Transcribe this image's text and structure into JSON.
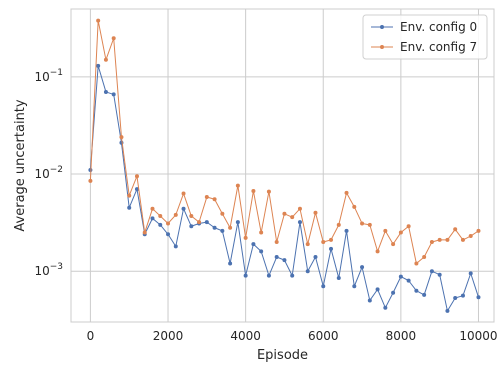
{
  "chart_data": {
    "type": "line",
    "title": "",
    "xlabel": "Episode",
    "ylabel": "Average uncertainty",
    "xlim": [
      -500,
      10400
    ],
    "ylim": [
      0.0003,
      0.5
    ],
    "yscale": "log",
    "grid": true,
    "legend_position": "top-right",
    "x_ticks": [
      0,
      2000,
      4000,
      6000,
      8000,
      10000
    ],
    "x_tick_labels": [
      "0",
      "2000",
      "4000",
      "6000",
      "8000",
      "10000"
    ],
    "y_ticks": [
      0.001,
      0.01,
      0.1
    ],
    "y_tick_labels": [
      {
        "base": "10",
        "exp": "−3"
      },
      {
        "base": "10",
        "exp": "−2"
      },
      {
        "base": "10",
        "exp": "−1"
      }
    ],
    "x": [
      0,
      200,
      400,
      600,
      800,
      1000,
      1200,
      1400,
      1600,
      1800,
      2000,
      2200,
      2400,
      2600,
      2800,
      3000,
      3200,
      3400,
      3600,
      3800,
      4000,
      4200,
      4400,
      4600,
      4800,
      5000,
      5200,
      5400,
      5600,
      5800,
      6000,
      6200,
      6400,
      6600,
      6800,
      7000,
      7200,
      7400,
      7600,
      7800,
      8000,
      8200,
      8400,
      8600,
      8800,
      9000,
      9200,
      9400,
      9600,
      9800,
      10000
    ],
    "series": [
      {
        "name": "Env. config 0",
        "color": "#4c72b0",
        "values": [
          0.011,
          0.13,
          0.07,
          0.066,
          0.021,
          0.0045,
          0.007,
          0.0024,
          0.0035,
          0.003,
          0.0024,
          0.0018,
          0.0044,
          0.0029,
          0.0031,
          0.0032,
          0.0028,
          0.0026,
          0.0012,
          0.0032,
          0.0009,
          0.0019,
          0.0016,
          0.0009,
          0.0014,
          0.0013,
          0.0009,
          0.0032,
          0.001,
          0.0014,
          0.0007,
          0.0017,
          0.00085,
          0.0026,
          0.0007,
          0.0011,
          0.0005,
          0.00065,
          0.00042,
          0.0006,
          0.00088,
          0.0008,
          0.00063,
          0.00057,
          0.001,
          0.00092,
          0.00039,
          0.00053,
          0.00056,
          0.00095,
          0.00054
        ]
      },
      {
        "name": "Env. config 7",
        "color": "#dd8452",
        "values": [
          0.0085,
          0.38,
          0.15,
          0.25,
          0.024,
          0.006,
          0.0095,
          0.0025,
          0.0044,
          0.0037,
          0.0031,
          0.0038,
          0.0063,
          0.0037,
          0.0032,
          0.0058,
          0.0055,
          0.0039,
          0.0028,
          0.0076,
          0.0022,
          0.0067,
          0.0025,
          0.0066,
          0.002,
          0.0039,
          0.0036,
          0.0044,
          0.0019,
          0.004,
          0.002,
          0.0021,
          0.003,
          0.0064,
          0.0046,
          0.0031,
          0.003,
          0.0016,
          0.0026,
          0.0019,
          0.0025,
          0.0029,
          0.0012,
          0.0014,
          0.002,
          0.0021,
          0.0021,
          0.0027,
          0.0021,
          0.0023,
          0.0026
        ]
      }
    ]
  }
}
